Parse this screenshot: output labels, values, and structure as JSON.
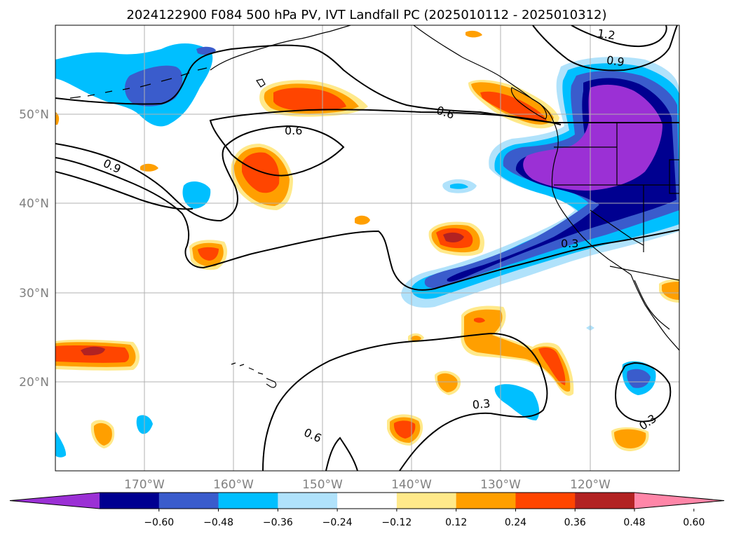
{
  "title": "2024122900 F084 500 hPa PV, IVT Landfall PC (2025010112 - 2025010312)",
  "map": {
    "lon_range": [
      -180,
      -110
    ],
    "lat_range": [
      10,
      60
    ],
    "lat_ticks": [
      {
        "value": 50,
        "label": "50°N"
      },
      {
        "value": 40,
        "label": "40°N"
      },
      {
        "value": 30,
        "label": "30°N"
      },
      {
        "value": 20,
        "label": "20°N"
      }
    ],
    "lon_ticks": [
      {
        "value": -170,
        "label": "170°W"
      },
      {
        "value": -160,
        "label": "160°W"
      },
      {
        "value": -150,
        "label": "150°W"
      },
      {
        "value": -140,
        "label": "140°W"
      },
      {
        "value": -130,
        "label": "130°W"
      },
      {
        "value": -120,
        "label": "120°W"
      }
    ],
    "grid": true
  },
  "contour_labels": [
    {
      "text": "1.2"
    },
    {
      "text": "0.9"
    },
    {
      "text": "0.9"
    },
    {
      "text": "0.6"
    },
    {
      "text": "0.6"
    },
    {
      "text": "0.6"
    },
    {
      "text": "0.3"
    },
    {
      "text": "0.3"
    },
    {
      "text": "0.3"
    }
  ],
  "colorbar": {
    "colors": [
      "#9b30d5",
      "#000090",
      "#3a5ccc",
      "#00bfff",
      "#b0e2fb",
      "#ffffff",
      "#ffe98a",
      "#ff9f00",
      "#ff4500",
      "#b22222",
      "#ff86a8"
    ],
    "tick_labels": [
      "−0.60",
      "−0.48",
      "−0.36",
      "−0.24",
      "−0.12",
      "0.12",
      "0.24",
      "0.36",
      "0.48",
      "0.60"
    ]
  }
}
